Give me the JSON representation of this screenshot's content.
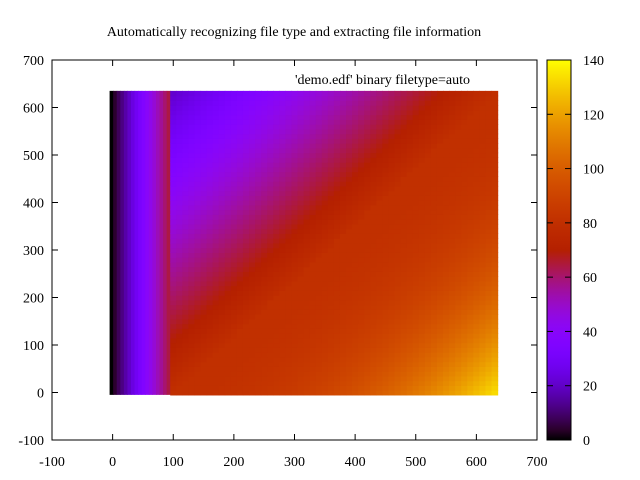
{
  "chart_data": {
    "type": "heatmap",
    "title": "Automatically recognizing file type and extracting file information",
    "xlabel": "",
    "ylabel": "",
    "xlim": [
      -100,
      700
    ],
    "ylim": [
      -100,
      700
    ],
    "x_ticks": [
      -100,
      0,
      100,
      200,
      300,
      400,
      500,
      600,
      700
    ],
    "y_ticks": [
      -100,
      0,
      100,
      200,
      300,
      400,
      500,
      600,
      700
    ],
    "legend_entry": "'demo.edf' binary filetype=auto",
    "legend_placement": "top-right",
    "grid": false,
    "image_extent": {
      "x": [
        -5,
        635
      ],
      "y": [
        -5,
        635
      ]
    },
    "stripe_region": {
      "x": [
        -5,
        95
      ],
      "values": [
        0,
        4,
        8,
        12,
        16,
        20,
        24,
        28,
        32,
        36,
        40,
        44,
        48,
        52,
        56,
        60,
        64
      ]
    },
    "main_region": {
      "x": [
        95,
        635
      ],
      "corner_values": {
        "bottom_left": 80,
        "bottom_right": 135,
        "top_left": 20,
        "top_right": 80
      },
      "description_formula": "value ≈ 80 + (x - 95)/10 - (y)/10.5 (clamped, diagonal ridge at 80)"
    },
    "colorbar": {
      "range": [
        0,
        140
      ],
      "ticks": [
        0,
        20,
        40,
        60,
        80,
        100,
        120,
        140
      ],
      "palette": "gnuplot-pm3d-default"
    }
  }
}
